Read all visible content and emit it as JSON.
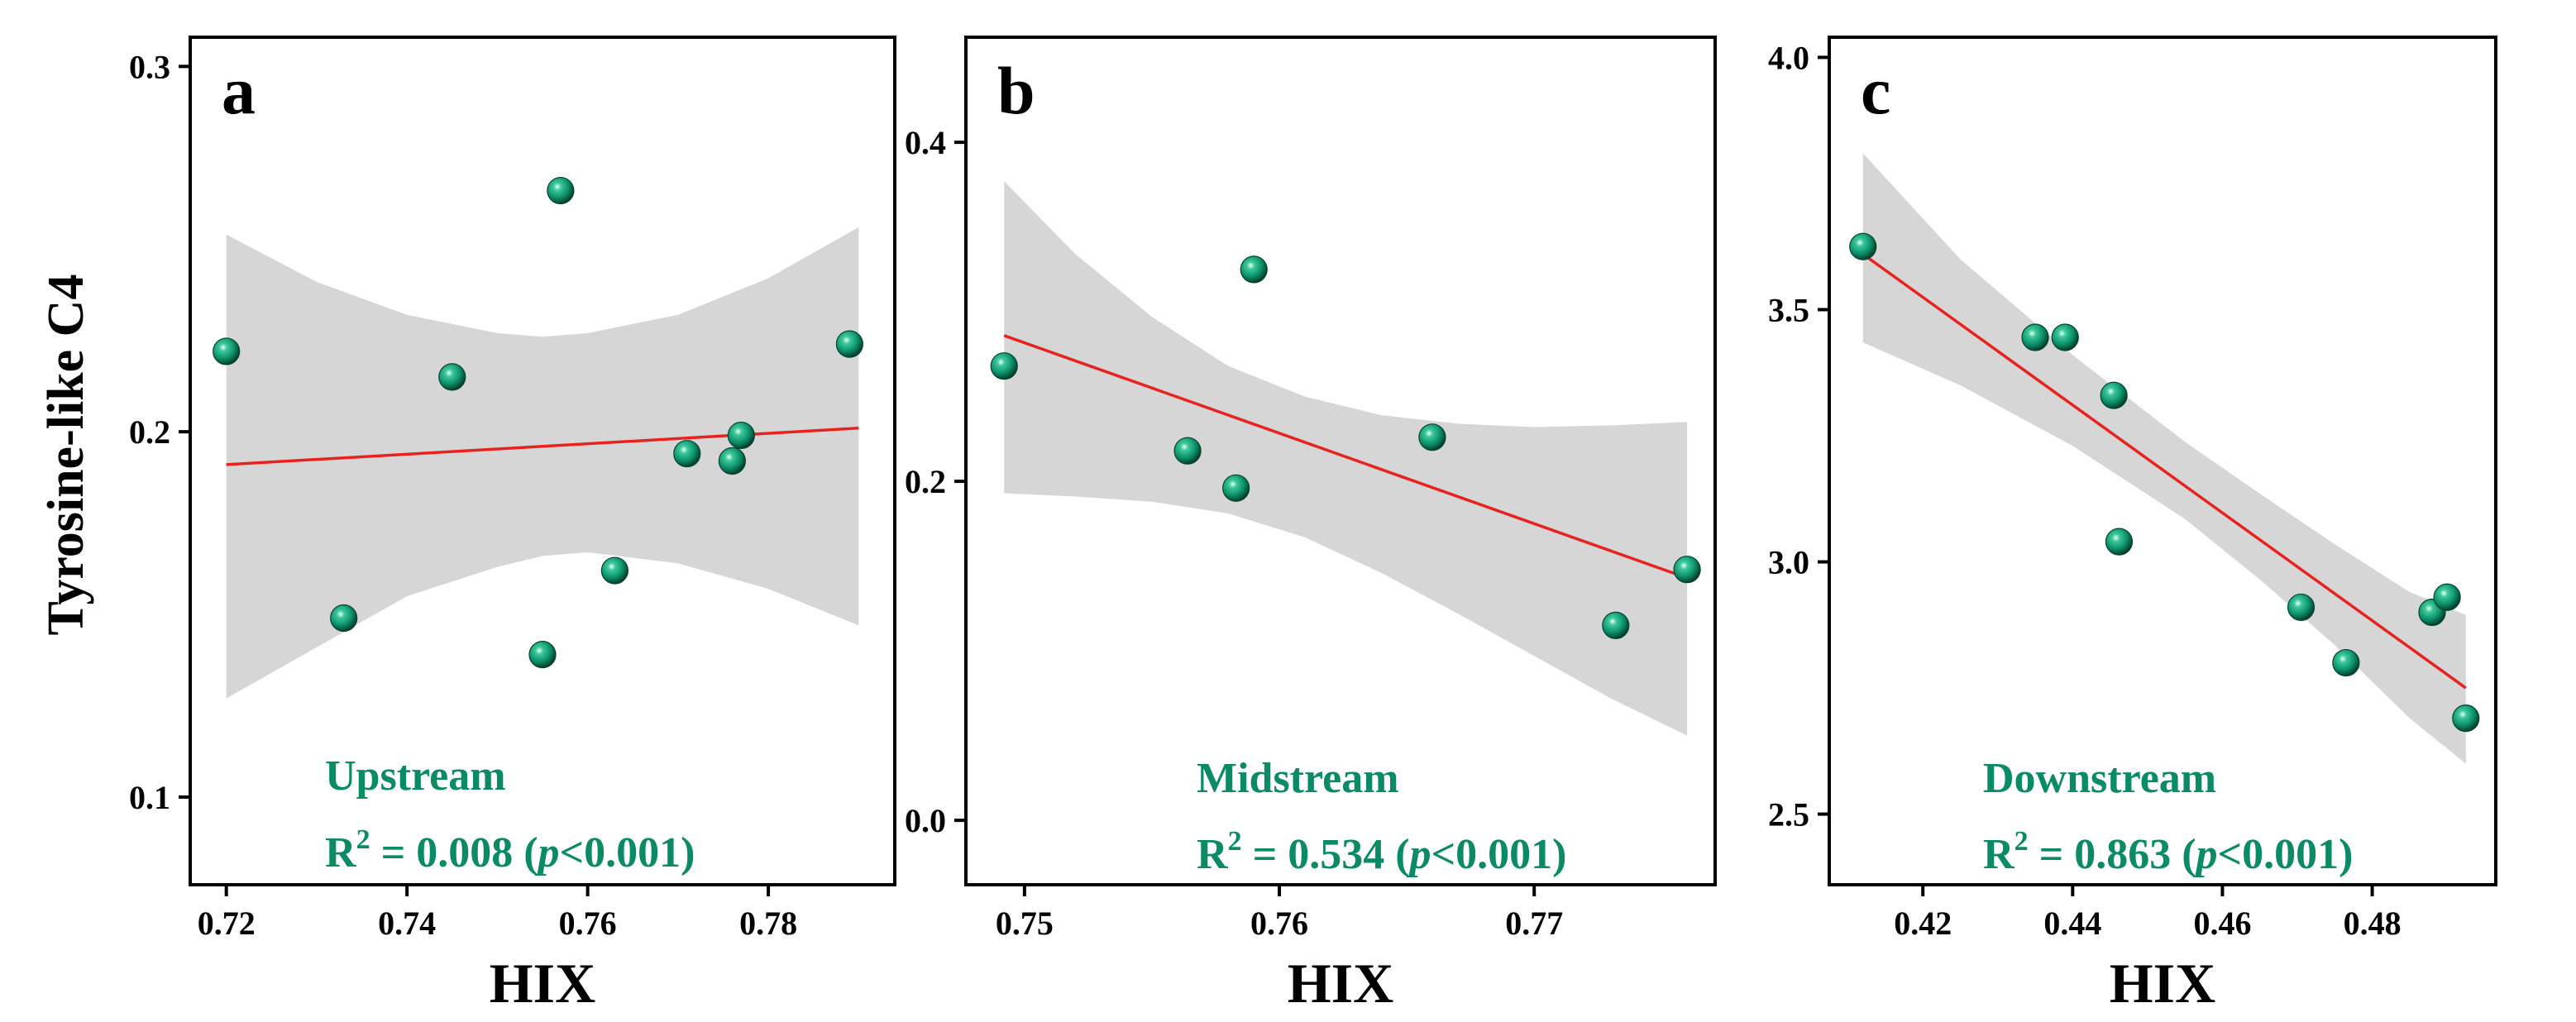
{
  "figure": {
    "y_title": "Tyrosine-like C4",
    "label_color": "#0b8a66",
    "point_color": "#0c8f6a",
    "fit_color": "#e8231f",
    "band_color": "#d6d6d6"
  },
  "chart_data": [
    {
      "type": "scatter",
      "panel": "a",
      "site": "Upstream",
      "r2_prefix": "R",
      "r2_sup": "2",
      "r2_value": " = 0.008 (",
      "p_symbol": "p",
      "p_text": "<0.001)",
      "xlabel": "HIX",
      "ylabel": "Tyrosine-like C4",
      "xlim": [
        0.716,
        0.794
      ],
      "ylim": [
        0.076,
        0.308
      ],
      "xticks": [
        0.72,
        0.74,
        0.76,
        0.78
      ],
      "xtick_labels": [
        "0.72",
        "0.74",
        "0.76",
        "0.78"
      ],
      "yticks": [
        0.1,
        0.2,
        0.3
      ],
      "ytick_labels": [
        "0.1",
        "0.2",
        "0.3"
      ],
      "x": [
        0.72,
        0.733,
        0.745,
        0.755,
        0.757,
        0.763,
        0.771,
        0.776,
        0.777,
        0.789
      ],
      "y": [
        0.222,
        0.149,
        0.215,
        0.139,
        0.266,
        0.162,
        0.194,
        0.192,
        0.199,
        0.224
      ],
      "fit": {
        "x": [
          0.72,
          0.79
        ],
        "y": [
          0.191,
          0.201
        ]
      },
      "band": {
        "x": [
          0.72,
          0.73,
          0.74,
          0.75,
          0.755,
          0.76,
          0.77,
          0.78,
          0.79
        ],
        "upper": [
          0.254,
          0.241,
          0.232,
          0.227,
          0.226,
          0.227,
          0.232,
          0.242,
          0.256
        ],
        "lower": [
          0.127,
          0.141,
          0.155,
          0.163,
          0.166,
          0.167,
          0.164,
          0.157,
          0.147
        ]
      }
    },
    {
      "type": "scatter",
      "panel": "b",
      "site": "Midstream",
      "r2_prefix": "R",
      "r2_sup": "2",
      "r2_value": " = 0.534 (",
      "p_symbol": "p",
      "p_text": "<0.001)",
      "xlabel": "HIX",
      "ylabel": "",
      "xlim": [
        0.7477,
        0.7771
      ],
      "ylim": [
        -0.038,
        0.462
      ],
      "xticks": [
        0.75,
        0.76,
        0.77
      ],
      "xtick_labels": [
        "0.75",
        "0.76",
        "0.77"
      ],
      "yticks": [
        0.0,
        0.2,
        0.4
      ],
      "ytick_labels": [
        "0.0",
        "0.2",
        "0.4"
      ],
      "x": [
        0.7492,
        0.7564,
        0.7583,
        0.759,
        0.766,
        0.7732,
        0.776
      ],
      "y": [
        0.268,
        0.218,
        0.196,
        0.325,
        0.226,
        0.115,
        0.148
      ],
      "fit": {
        "x": [
          0.7492,
          0.776
        ],
        "y": [
          0.286,
          0.143
        ]
      },
      "band": {
        "x": [
          0.7492,
          0.752,
          0.755,
          0.758,
          0.761,
          0.764,
          0.767,
          0.77,
          0.773,
          0.776
        ],
        "upper": [
          0.377,
          0.334,
          0.297,
          0.268,
          0.25,
          0.239,
          0.234,
          0.232,
          0.233,
          0.235
        ],
        "lower": [
          0.193,
          0.191,
          0.188,
          0.181,
          0.167,
          0.146,
          0.122,
          0.097,
          0.072,
          0.05
        ]
      }
    },
    {
      "type": "scatter",
      "panel": "c",
      "site": "Downstream",
      "r2_prefix": "R",
      "r2_sup": "2",
      "r2_value": " = 0.863 (",
      "p_symbol": "p",
      "p_text": "<0.001)",
      "xlabel": "HIX",
      "ylabel": "",
      "xlim": [
        0.4075,
        0.4965
      ],
      "ylim": [
        2.36,
        4.04
      ],
      "xticks": [
        0.42,
        0.44,
        0.46,
        0.48
      ],
      "xtick_labels": [
        "0.42",
        "0.44",
        "0.46",
        "0.48"
      ],
      "yticks": [
        2.5,
        3.0,
        3.5,
        4.0
      ],
      "ytick_labels": [
        "2.5",
        "3.0",
        "3.5",
        "4.0"
      ],
      "x": [
        0.412,
        0.435,
        0.439,
        0.4455,
        0.4462,
        0.4705,
        0.4765,
        0.488,
        0.49,
        0.4925
      ],
      "y": [
        3.625,
        3.445,
        3.445,
        3.33,
        3.04,
        2.91,
        2.8,
        2.9,
        2.93,
        2.69
      ],
      "fit": {
        "x": [
          0.412,
          0.4925
        ],
        "y": [
          3.61,
          2.75
        ]
      },
      "band": {
        "x": [
          0.412,
          0.425,
          0.44,
          0.455,
          0.465,
          0.475,
          0.485,
          0.4925
        ],
        "upper": [
          3.81,
          3.6,
          3.41,
          3.238,
          3.135,
          3.035,
          2.94,
          2.895
        ],
        "lower": [
          3.435,
          3.35,
          3.23,
          3.085,
          2.965,
          2.835,
          2.69,
          2.6
        ]
      }
    }
  ]
}
